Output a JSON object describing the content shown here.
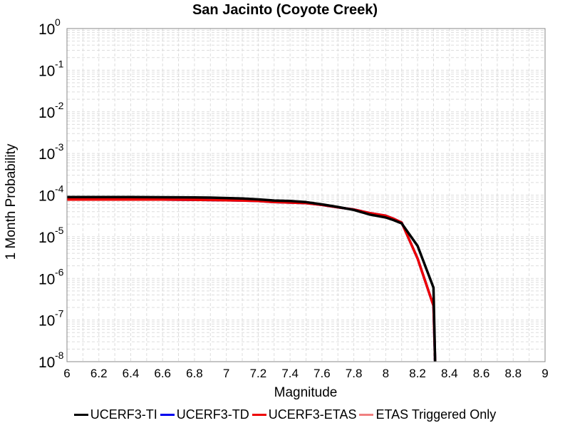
{
  "chart_data": {
    "type": "line",
    "title": "San Jacinto (Coyote Creek)",
    "xlabel": "Magnitude",
    "ylabel": "1 Month Probability",
    "xlim": [
      6,
      9
    ],
    "ylim": [
      1e-08,
      1
    ],
    "y_scale": "log",
    "grid": true,
    "legend_position": "bottom",
    "x_ticks": [
      "6",
      "6.2",
      "6.4",
      "6.6",
      "6.8",
      "7",
      "7.2",
      "7.4",
      "7.6",
      "7.8",
      "8",
      "8.2",
      "8.4",
      "8.6",
      "8.8",
      "9"
    ],
    "y_ticks": [
      {
        "base": "10",
        "exp": "0"
      },
      {
        "base": "10",
        "exp": "-1"
      },
      {
        "base": "10",
        "exp": "-2"
      },
      {
        "base": "10",
        "exp": "-3"
      },
      {
        "base": "10",
        "exp": "-4"
      },
      {
        "base": "10",
        "exp": "-5"
      },
      {
        "base": "10",
        "exp": "-6"
      },
      {
        "base": "10",
        "exp": "-7"
      },
      {
        "base": "10",
        "exp": "-8"
      }
    ],
    "series": [
      {
        "name": "UCERF3-TI",
        "color": "#000000",
        "x": [
          6.0,
          6.2,
          6.4,
          6.6,
          6.8,
          6.9,
          7.0,
          7.1,
          7.2,
          7.3,
          7.4,
          7.5,
          7.6,
          7.7,
          7.8,
          7.9,
          8.0,
          8.05,
          8.1,
          8.2,
          8.3,
          8.31
        ],
        "values": [
          9e-05,
          9e-05,
          9e-05,
          8.9e-05,
          8.8e-05,
          8.7e-05,
          8.5e-05,
          8.3e-05,
          7.9e-05,
          7.4e-05,
          7.2e-05,
          6.8e-05,
          6e-05,
          5.2e-05,
          4.4e-05,
          3.4e-05,
          2.9e-05,
          2.5e-05,
          2.1e-05,
          6e-06,
          6e-07,
          1e-08
        ]
      },
      {
        "name": "UCERF3-TD",
        "color": "#0000ee",
        "x": [
          6.0,
          6.2,
          6.4,
          6.6,
          6.8,
          7.0,
          7.1,
          7.2,
          7.3,
          7.4,
          7.5,
          7.6,
          7.7,
          7.8,
          7.9,
          8.0,
          8.05,
          8.1,
          8.2,
          8.3,
          8.31
        ],
        "values": [
          7.8e-05,
          7.8e-05,
          7.8e-05,
          7.8e-05,
          7.7e-05,
          7.5e-05,
          7.4e-05,
          7.2e-05,
          6.8e-05,
          6.6e-05,
          6.4e-05,
          5.8e-05,
          5.1e-05,
          4.5e-05,
          3.7e-05,
          3.2e-05,
          2.7e-05,
          2.2e-05,
          3e-06,
          2.2e-07,
          1e-08
        ]
      },
      {
        "name": "UCERF3-ETAS",
        "color": "#ee0000",
        "x": [
          6.0,
          6.2,
          6.4,
          6.6,
          6.8,
          7.0,
          7.1,
          7.2,
          7.3,
          7.4,
          7.5,
          7.6,
          7.7,
          7.8,
          7.9,
          8.0,
          8.05,
          8.1,
          8.2,
          8.3,
          8.31
        ],
        "values": [
          7.8e-05,
          7.8e-05,
          7.8e-05,
          7.8e-05,
          7.7e-05,
          7.5e-05,
          7.4e-05,
          7.2e-05,
          6.8e-05,
          6.6e-05,
          6.4e-05,
          5.8e-05,
          5.1e-05,
          4.5e-05,
          3.7e-05,
          3.2e-05,
          2.7e-05,
          2.2e-05,
          3e-06,
          2.2e-07,
          1e-08
        ]
      },
      {
        "name": "ETAS Triggered Only",
        "color": "#f08080",
        "x": [],
        "values": []
      }
    ]
  }
}
